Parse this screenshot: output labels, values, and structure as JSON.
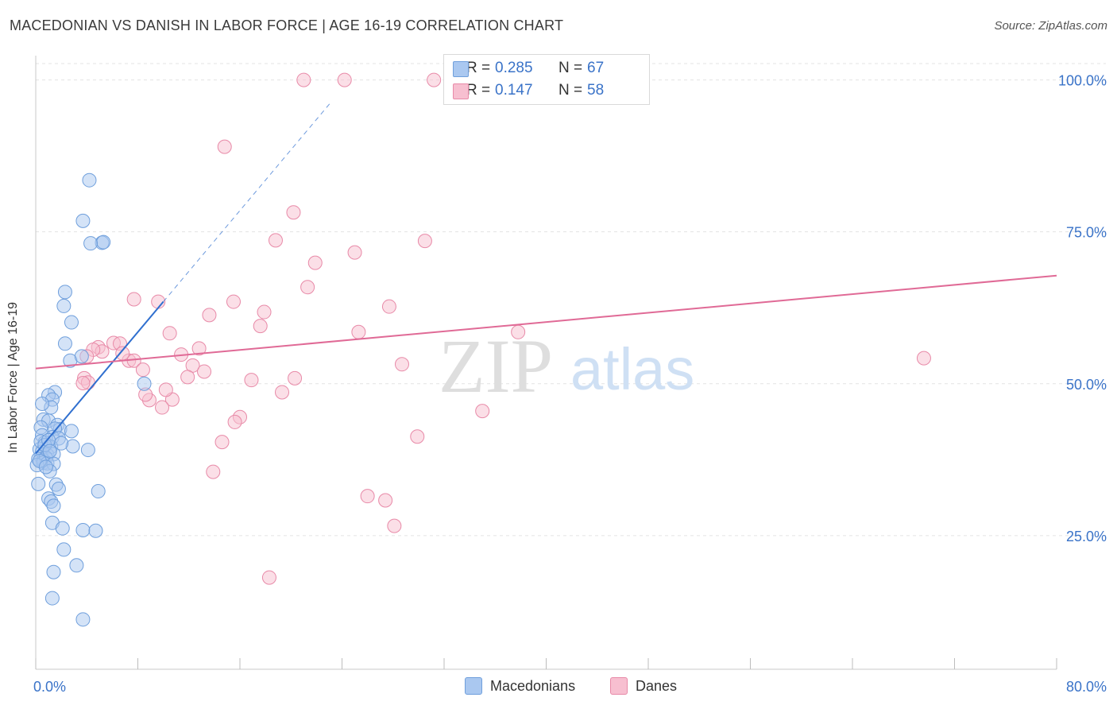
{
  "title": "MACEDONIAN VS DANISH IN LABOR FORCE | AGE 16-19 CORRELATION CHART",
  "source": "Source: ZipAtlas.com",
  "watermark": {
    "zip": "ZIP",
    "atlas": "atlas"
  },
  "legend_top": [
    {
      "r_label": "R =",
      "r_value": "0.285",
      "n_label": "N =",
      "n_value": "67"
    },
    {
      "r_label": "R =",
      "r_value": "0.147",
      "n_label": "N =",
      "n_value": "58"
    }
  ],
  "colors": {
    "macedonian_fill": "#aac8f0",
    "macedonian_stroke": "#6f9fdc",
    "macedonian_line": "#2f6fcf",
    "danish_fill": "#f7bfd0",
    "danish_stroke": "#e88aa8",
    "danish_line": "#e06a96",
    "axis_value": "#3a73c8",
    "grid": "#e3e3e3"
  },
  "chart_data": {
    "type": "scatter",
    "title": "MACEDONIAN VS DANISH IN LABOR FORCE | AGE 16-19 CORRELATION CHART",
    "xlabel": "",
    "ylabel": "In Labor Force | Age 16-19",
    "xlim": [
      0,
      80
    ],
    "ylim": [
      3,
      104
    ],
    "x_tick_labels": [
      "0.0%",
      "80.0%"
    ],
    "y_ticks": [
      25,
      50,
      75,
      100
    ],
    "y_tick_labels": [
      "25.0%",
      "50.0%",
      "75.0%",
      "100.0%"
    ],
    "legend": [
      "Macedonians",
      "Danes"
    ],
    "series": [
      {
        "name": "Macedonians",
        "r": 0.285,
        "n": 67,
        "trend": {
          "x0": 0,
          "y0": 38.5,
          "x1": 10,
          "y1": 63.5,
          "dash_to_x": 23.2
        },
        "points": [
          [
            4.2,
            83.5
          ],
          [
            3.7,
            76.8
          ],
          [
            5.2,
            73.2
          ],
          [
            5.3,
            73.3
          ],
          [
            4.3,
            73.1
          ],
          [
            2.3,
            65.1
          ],
          [
            2.2,
            62.8
          ],
          [
            2.8,
            60.1
          ],
          [
            2.3,
            56.6
          ],
          [
            2.7,
            53.8
          ],
          [
            3.6,
            54.5
          ],
          [
            8.5,
            50.0
          ],
          [
            1.5,
            48.6
          ],
          [
            1.0,
            48.1
          ],
          [
            1.3,
            47.4
          ],
          [
            1.2,
            46.1
          ],
          [
            0.5,
            46.7
          ],
          [
            0.6,
            44.1
          ],
          [
            1.0,
            43.9
          ],
          [
            0.4,
            42.8
          ],
          [
            1.7,
            43.2
          ],
          [
            1.9,
            42.5
          ],
          [
            1.5,
            42.6
          ],
          [
            2.8,
            42.2
          ],
          [
            0.5,
            41.5
          ],
          [
            1.3,
            41.2
          ],
          [
            1.8,
            41.0
          ],
          [
            0.7,
            40.3
          ],
          [
            1.2,
            39.6
          ],
          [
            2.9,
            39.7
          ],
          [
            4.1,
            39.1
          ],
          [
            0.3,
            39.2
          ],
          [
            0.5,
            38.8
          ],
          [
            0.9,
            38.3
          ],
          [
            1.4,
            38.4
          ],
          [
            0.4,
            38.0
          ],
          [
            0.2,
            37.6
          ],
          [
            0.6,
            37.4
          ],
          [
            0.8,
            37.8
          ],
          [
            0.6,
            37.0
          ],
          [
            0.9,
            36.9
          ],
          [
            1.4,
            36.8
          ],
          [
            0.1,
            36.6
          ],
          [
            1.1,
            35.6
          ],
          [
            0.2,
            33.5
          ],
          [
            1.6,
            33.4
          ],
          [
            1.8,
            32.7
          ],
          [
            4.9,
            32.3
          ],
          [
            1.0,
            31.1
          ],
          [
            1.2,
            30.6
          ],
          [
            1.4,
            29.9
          ],
          [
            1.3,
            27.1
          ],
          [
            2.1,
            26.2
          ],
          [
            3.7,
            25.9
          ],
          [
            4.7,
            25.8
          ],
          [
            2.2,
            22.7
          ],
          [
            1.4,
            19.0
          ],
          [
            3.2,
            20.1
          ],
          [
            1.3,
            14.7
          ],
          [
            3.7,
            11.2
          ],
          [
            0.4,
            40.5
          ],
          [
            0.7,
            39.9
          ],
          [
            1.0,
            40.7
          ],
          [
            0.3,
            37.3
          ],
          [
            0.8,
            36.3
          ],
          [
            1.1,
            38.9
          ],
          [
            2.0,
            40.2
          ]
        ]
      },
      {
        "name": "Danes",
        "r": 0.147,
        "n": 58,
        "trend": {
          "x0": 0,
          "y0": 52.5,
          "x1": 80,
          "y1": 67.8
        },
        "points": [
          [
            21.0,
            100.0
          ],
          [
            24.2,
            100.0
          ],
          [
            31.2,
            100.0
          ],
          [
            14.8,
            89.0
          ],
          [
            20.2,
            78.2
          ],
          [
            18.8,
            73.6
          ],
          [
            30.5,
            73.5
          ],
          [
            25.0,
            71.6
          ],
          [
            21.9,
            69.9
          ],
          [
            21.3,
            65.9
          ],
          [
            7.7,
            63.9
          ],
          [
            9.6,
            63.5
          ],
          [
            15.5,
            63.5
          ],
          [
            27.7,
            62.7
          ],
          [
            13.6,
            61.3
          ],
          [
            17.9,
            61.8
          ],
          [
            17.6,
            59.5
          ],
          [
            25.3,
            58.5
          ],
          [
            37.8,
            58.5
          ],
          [
            10.5,
            58.3
          ],
          [
            6.1,
            56.7
          ],
          [
            6.6,
            56.6
          ],
          [
            4.9,
            56.0
          ],
          [
            12.8,
            55.8
          ],
          [
            5.2,
            55.3
          ],
          [
            4.5,
            55.6
          ],
          [
            11.4,
            54.8
          ],
          [
            7.3,
            53.8
          ],
          [
            7.7,
            53.8
          ],
          [
            12.3,
            53.0
          ],
          [
            28.7,
            53.2
          ],
          [
            8.4,
            52.3
          ],
          [
            11.9,
            51.1
          ],
          [
            3.8,
            50.9
          ],
          [
            4.1,
            50.2
          ],
          [
            3.7,
            50.1
          ],
          [
            20.3,
            50.9
          ],
          [
            16.9,
            50.6
          ],
          [
            19.3,
            48.6
          ],
          [
            8.9,
            47.3
          ],
          [
            10.7,
            47.4
          ],
          [
            9.9,
            46.1
          ],
          [
            35.0,
            45.5
          ],
          [
            16.0,
            44.5
          ],
          [
            15.6,
            43.7
          ],
          [
            29.9,
            41.3
          ],
          [
            14.6,
            40.4
          ],
          [
            13.9,
            35.5
          ],
          [
            26.0,
            31.5
          ],
          [
            27.4,
            30.8
          ],
          [
            28.1,
            26.6
          ],
          [
            18.3,
            18.1
          ],
          [
            69.6,
            54.2
          ],
          [
            4.0,
            54.5
          ],
          [
            8.6,
            48.2
          ],
          [
            10.2,
            49.0
          ],
          [
            13.2,
            52.0
          ],
          [
            6.8,
            55.0
          ]
        ]
      }
    ]
  }
}
